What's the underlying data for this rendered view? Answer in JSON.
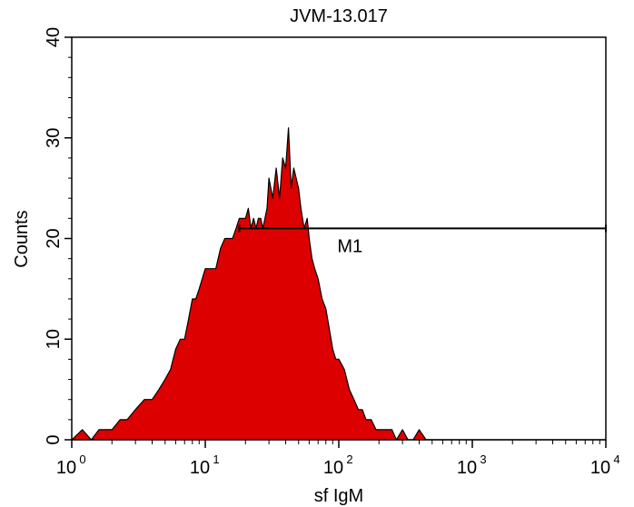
{
  "chart_data": {
    "type": "area",
    "title": "JVM-13.017",
    "xlabel": "sf IgM",
    "ylabel": "Counts",
    "xscale": "log",
    "xlim": [
      1,
      10000
    ],
    "ylim": [
      0,
      40
    ],
    "xticks": [
      {
        "value": 1,
        "base": "10",
        "exp": "0"
      },
      {
        "value": 10,
        "base": "10",
        "exp": "1"
      },
      {
        "value": 100,
        "base": "10",
        "exp": "2"
      },
      {
        "value": 1000,
        "base": "10",
        "exp": "3"
      },
      {
        "value": 10000,
        "base": "10",
        "exp": "4"
      }
    ],
    "yticks": [
      "0",
      "10",
      "20",
      "30",
      "40"
    ],
    "grid": false,
    "fill_color": "#dd0000",
    "outline_color": "#000000",
    "series": [
      {
        "x": [
          1.0,
          1.2,
          1.4,
          1.6,
          1.8,
          2.0,
          2.3,
          2.6,
          3.0,
          3.5,
          4.0,
          4.5,
          5.0,
          5.5,
          6.0,
          6.5,
          7.0,
          7.5,
          8.0,
          8.5,
          9.0,
          10,
          11,
          12,
          13,
          14,
          15,
          16,
          17,
          18,
          19,
          20,
          21,
          22,
          23,
          24,
          25,
          26,
          27,
          28,
          29,
          30,
          32,
          34,
          36,
          38,
          40,
          42,
          44,
          46,
          48,
          50,
          52,
          55,
          58,
          60,
          63,
          66,
          70,
          75,
          80,
          85,
          90,
          95,
          100,
          110,
          120,
          130,
          140,
          150,
          160,
          175,
          190,
          210,
          230,
          250,
          270,
          300,
          330,
          360,
          400,
          450,
          500,
          550,
          600,
          650,
          700,
          750,
          800,
          850,
          900,
          950,
          1000,
          1100,
          1300,
          1500,
          2000,
          3000,
          5000,
          10000
        ],
        "y": [
          0,
          1,
          0,
          1,
          1,
          1,
          2,
          2,
          3,
          4,
          4,
          5,
          6,
          7,
          9,
          10,
          10,
          12,
          14,
          14,
          15,
          17,
          17,
          17,
          19,
          20,
          20,
          20,
          21,
          22,
          22,
          22,
          23,
          21,
          22,
          21,
          22,
          22,
          21,
          22,
          23,
          26,
          24,
          27,
          24,
          28,
          27,
          31,
          25,
          27,
          26,
          25,
          23,
          21,
          22,
          20,
          18,
          17,
          16,
          14,
          13,
          11,
          9,
          8,
          8,
          7,
          5,
          4,
          3,
          3,
          2,
          2,
          1,
          1,
          1,
          1,
          0,
          1,
          0,
          0,
          1,
          0,
          0,
          0,
          0,
          0,
          0,
          0,
          0,
          0,
          0,
          0,
          0,
          0,
          0,
          0,
          0,
          0,
          0,
          0
        ]
      }
    ],
    "annotations": [
      {
        "label": "M1",
        "type": "marker",
        "x_start": 18,
        "x_end": 10000,
        "y": 21
      }
    ]
  }
}
